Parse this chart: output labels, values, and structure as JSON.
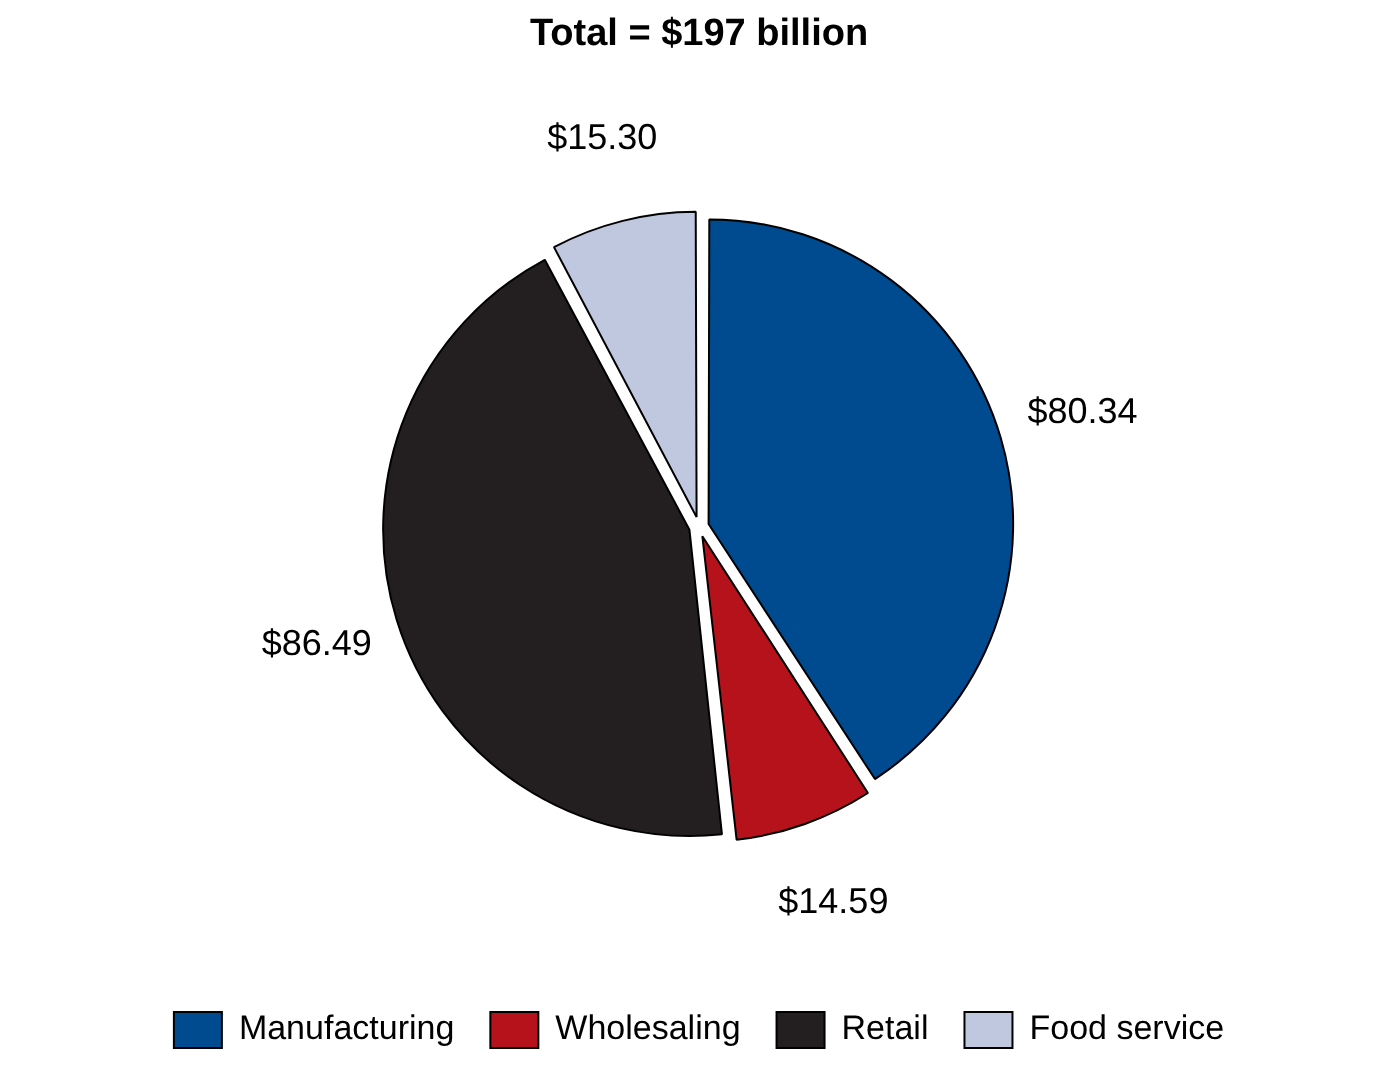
{
  "chart_data": {
    "type": "pie",
    "title": "Total = $197 billion",
    "categories": [
      "Manufacturing",
      "Wholesaling",
      "Retail",
      "Food service"
    ],
    "values": [
      80.34,
      14.59,
      86.49,
      15.3
    ],
    "colors": [
      "#004a8f",
      "#b5121b",
      "#231f20",
      "#c0c8e0"
    ],
    "value_labels": [
      "$80.34",
      "$14.59",
      "$86.49",
      "$15.30"
    ],
    "legend": "bottom"
  }
}
